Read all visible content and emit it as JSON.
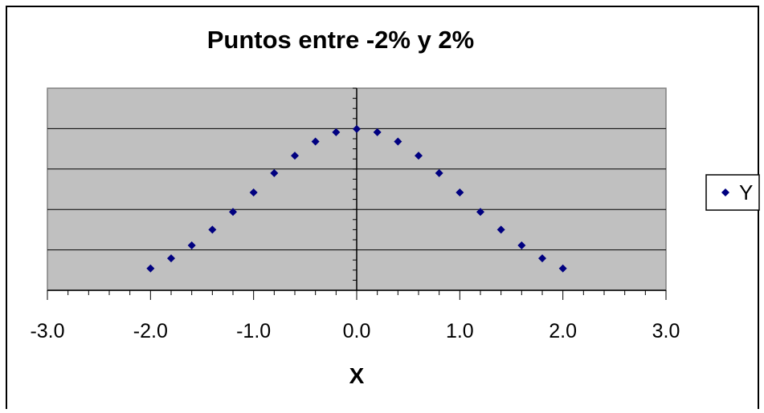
{
  "chart_data": {
    "type": "scatter",
    "title": "Puntos entre -2% y 2%",
    "xlabel": "X",
    "ylabel": "",
    "xlim": [
      -3.0,
      3.0
    ],
    "ylim": [
      0,
      0.5
    ],
    "x_ticks": [
      "-3.0",
      "-2.0",
      "-1.0",
      "0.0",
      "1.0",
      "2.0",
      "3.0"
    ],
    "y_gridlines": [
      0.1,
      0.2,
      0.3,
      0.4
    ],
    "grid": true,
    "legend_position": "right",
    "plot_background": "#c0c0c0",
    "series": [
      {
        "name": "Y",
        "color": "#000080",
        "marker": "diamond",
        "x": [
          -2.0,
          -1.8,
          -1.6,
          -1.4,
          -1.2,
          -1.0,
          -0.8,
          -0.6,
          -0.4,
          -0.2,
          0.0,
          0.2,
          0.4,
          0.6,
          0.8,
          1.0,
          1.2,
          1.4,
          1.6,
          1.8,
          2.0
        ],
        "y": [
          0.054,
          0.079,
          0.111,
          0.15,
          0.194,
          0.242,
          0.29,
          0.333,
          0.368,
          0.391,
          0.399,
          0.391,
          0.368,
          0.333,
          0.29,
          0.242,
          0.194,
          0.15,
          0.111,
          0.079,
          0.054
        ]
      }
    ]
  }
}
